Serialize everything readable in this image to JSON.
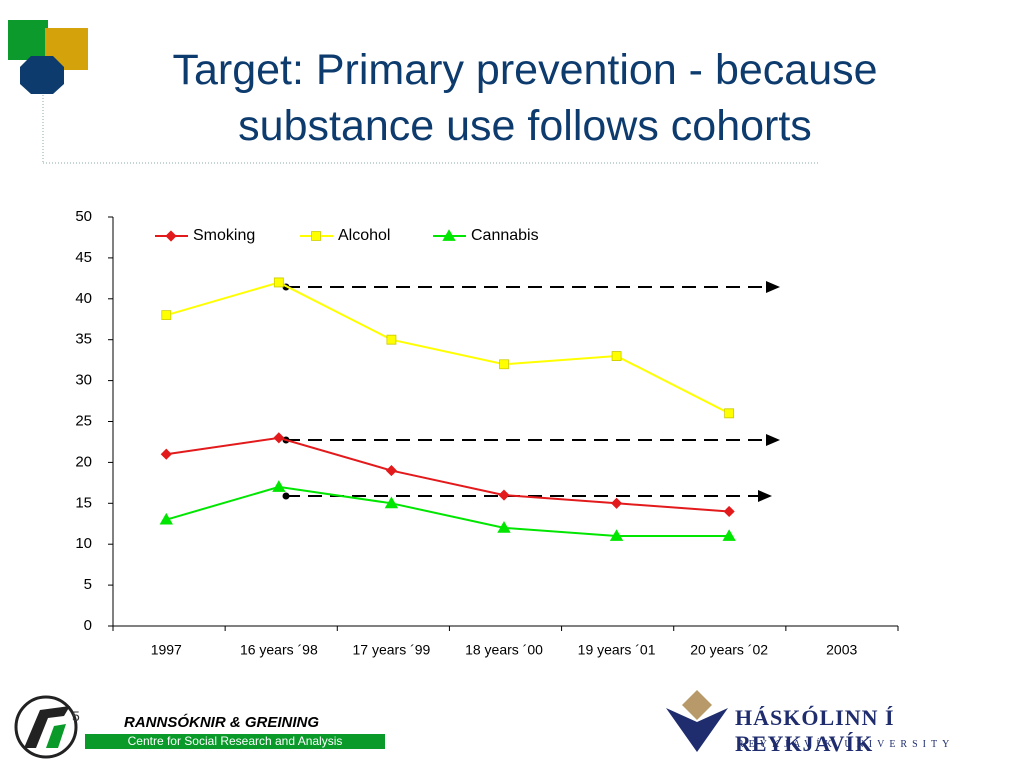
{
  "header": {
    "title": "Target: Primary prevention - because substance use follows cohorts"
  },
  "chart_data": {
    "type": "line",
    "categories": [
      "1997",
      "16 years ´98",
      "17 years ´99",
      "18 years ´00",
      "19 years ´01",
      "20 years ´02",
      "2003"
    ],
    "series": [
      {
        "name": "Smoking",
        "color": "#e31a1c",
        "marker": "diamond",
        "values": [
          21,
          23,
          19,
          16,
          15,
          14,
          null
        ]
      },
      {
        "name": "Alcohol",
        "color": "#ffff00",
        "marker": "square",
        "values": [
          38,
          42,
          35,
          32,
          33,
          26,
          null
        ]
      },
      {
        "name": "Cannabis",
        "color": "#00e600",
        "marker": "triangle",
        "values": [
          13,
          17,
          15,
          12,
          11,
          11,
          null
        ]
      }
    ],
    "ylim": [
      0,
      50
    ],
    "yticks": [
      0,
      5,
      10,
      15,
      20,
      25,
      30,
      35,
      40,
      45,
      50
    ],
    "legend": "top"
  },
  "footer": {
    "slide_number": "5",
    "org": "RANNSÓKNIR & GREINING",
    "org_sub": "Centre for Social Research and Analysis",
    "university": "HÁSKÓLINN Í REYKJAVÍK",
    "university_sub": "REYKJAVÍK UNIVERSITY"
  }
}
